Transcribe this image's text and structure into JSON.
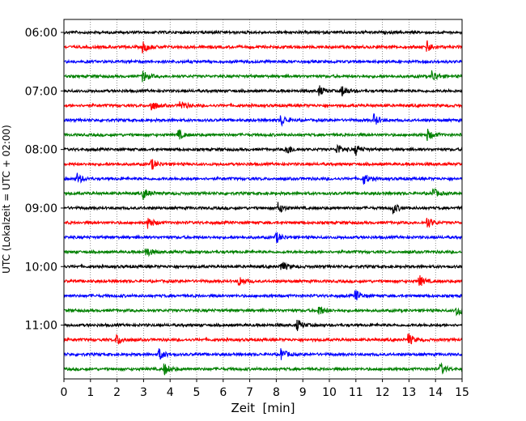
{
  "chart_data": {
    "type": "line",
    "title": "",
    "xlabel": "Zeit  [min]",
    "ylabel": "UTC (Lokalzeit = UTC + 02:00)",
    "xlim": [
      0,
      15
    ],
    "x_ticks": [
      0,
      1,
      2,
      3,
      4,
      5,
      6,
      7,
      8,
      9,
      10,
      11,
      12,
      13,
      14,
      15
    ],
    "x_tick_labels": [
      "0",
      "1",
      "2",
      "3",
      "4",
      "5",
      "6",
      "7",
      "8",
      "9",
      "10",
      "11",
      "12",
      "13",
      "14",
      "15"
    ],
    "y_tick_labels": [
      "06:00",
      "07:00",
      "08:00",
      "09:00",
      "10:00",
      "11:00"
    ],
    "y_tick_rows": [
      0,
      4,
      8,
      12,
      16,
      20
    ],
    "grid": "vertical dotted",
    "trace_colors": [
      "#000000",
      "#ff0000",
      "#0000ff",
      "#008000"
    ],
    "series": [
      {
        "row": 0,
        "color": "#000000",
        "events_min": []
      },
      {
        "row": 1,
        "color": "#ff0000",
        "events_min": [
          3.0,
          13.7
        ]
      },
      {
        "row": 2,
        "color": "#0000ff",
        "events_min": []
      },
      {
        "row": 3,
        "color": "#008000",
        "events_min": [
          3.0,
          13.9
        ]
      },
      {
        "row": 4,
        "color": "#000000",
        "events_min": [
          9.6,
          10.5
        ]
      },
      {
        "row": 5,
        "color": "#ff0000",
        "events_min": [
          3.3,
          4.4
        ]
      },
      {
        "row": 6,
        "color": "#0000ff",
        "events_min": [
          8.2,
          11.7
        ]
      },
      {
        "row": 7,
        "color": "#008000",
        "events_min": [
          4.3,
          13.7
        ]
      },
      {
        "row": 8,
        "color": "#000000",
        "events_min": [
          8.4,
          10.3,
          11.0
        ]
      },
      {
        "row": 9,
        "color": "#ff0000",
        "events_min": [
          3.3
        ]
      },
      {
        "row": 10,
        "color": "#0000ff",
        "events_min": [
          0.5,
          11.3
        ]
      },
      {
        "row": 11,
        "color": "#008000",
        "events_min": [
          3.0,
          13.9
        ]
      },
      {
        "row": 12,
        "color": "#000000",
        "events_min": [
          8.1,
          12.4
        ]
      },
      {
        "row": 13,
        "color": "#ff0000",
        "events_min": [
          3.2,
          13.7
        ]
      },
      {
        "row": 14,
        "color": "#0000ff",
        "events_min": [
          8.0
        ]
      },
      {
        "row": 15,
        "color": "#008000",
        "events_min": [
          3.1
        ]
      },
      {
        "row": 16,
        "color": "#000000",
        "events_min": [
          8.2
        ]
      },
      {
        "row": 17,
        "color": "#ff0000",
        "events_min": [
          6.6,
          13.4
        ]
      },
      {
        "row": 18,
        "color": "#0000ff",
        "events_min": [
          11.0
        ]
      },
      {
        "row": 19,
        "color": "#008000",
        "events_min": [
          9.6,
          14.8
        ]
      },
      {
        "row": 20,
        "color": "#000000",
        "events_min": [
          8.8
        ]
      },
      {
        "row": 21,
        "color": "#ff0000",
        "events_min": [
          2.0,
          13.0
        ]
      },
      {
        "row": 22,
        "color": "#0000ff",
        "events_min": [
          3.6,
          8.2
        ]
      },
      {
        "row": 23,
        "color": "#008000",
        "events_min": [
          3.8,
          14.2
        ]
      }
    ]
  }
}
